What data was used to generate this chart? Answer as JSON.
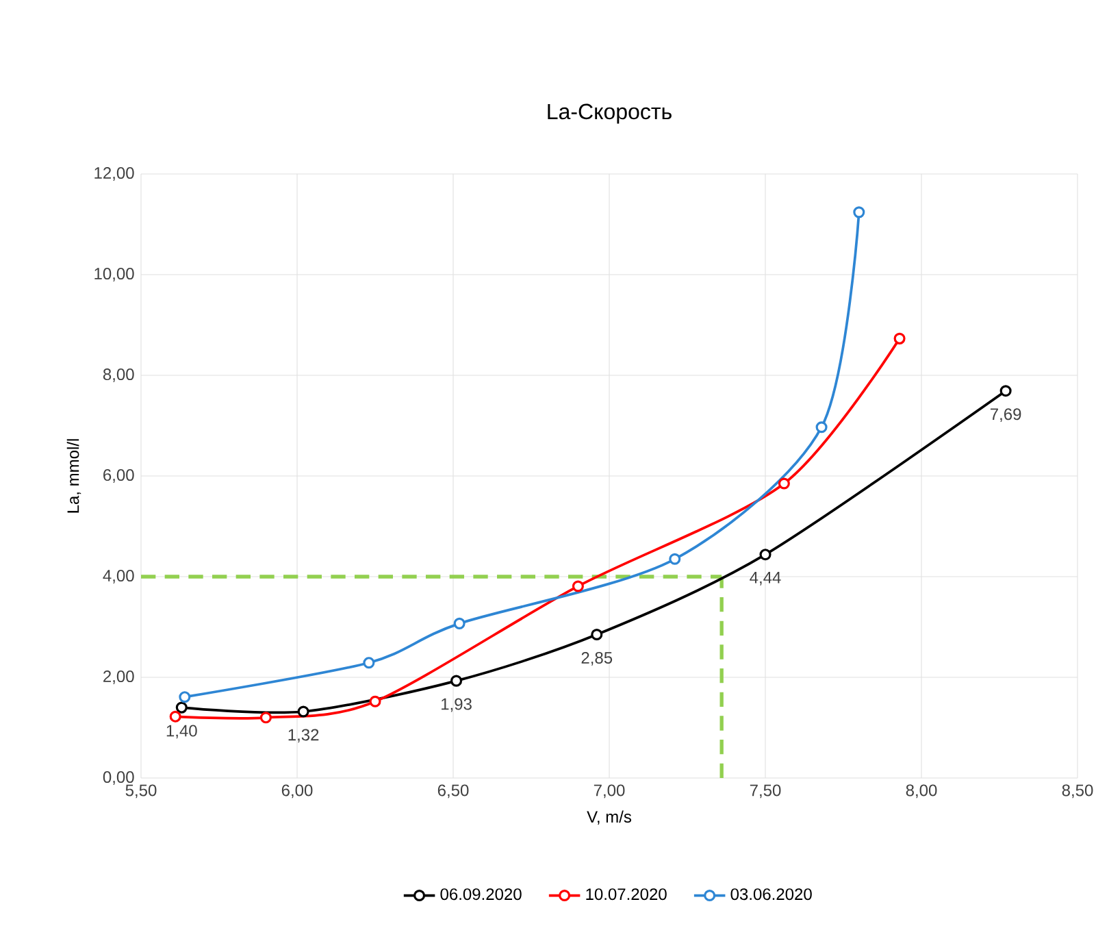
{
  "chart_data": {
    "type": "line",
    "title": "La-Скорость",
    "xlabel": "V, m/s",
    "ylabel": "La, mmol/l",
    "xlim": [
      5.5,
      8.5
    ],
    "xticks": [
      {
        "value": 5.5,
        "label": "5,50"
      },
      {
        "value": 6.0,
        "label": "6,00"
      },
      {
        "value": 6.5,
        "label": "6,50"
      },
      {
        "value": 7.0,
        "label": "7,00"
      },
      {
        "value": 7.5,
        "label": "7,50"
      },
      {
        "value": 8.0,
        "label": "8,00"
      },
      {
        "value": 8.5,
        "label": "8,50"
      }
    ],
    "ylim": [
      0,
      12
    ],
    "yticks": [
      {
        "value": 0,
        "label": "0,00"
      },
      {
        "value": 2,
        "label": "2,00"
      },
      {
        "value": 4,
        "label": "4,00"
      },
      {
        "value": 6,
        "label": "6,00"
      },
      {
        "value": 8,
        "label": "8,00"
      },
      {
        "value": 10,
        "label": "10,00"
      },
      {
        "value": 12,
        "label": "12,00"
      }
    ],
    "grid": true,
    "legend": "bottom",
    "marker": "circle",
    "line_style": "solid",
    "series": [
      {
        "name": "06.09.2020",
        "color": "#000000",
        "x": [
          5.63,
          6.02,
          6.51,
          6.96,
          7.5,
          8.27
        ],
        "values": [
          1.4,
          1.32,
          1.93,
          2.85,
          4.44,
          7.69
        ],
        "value_labels": [
          "1,40",
          "1,32",
          "1,93",
          "2,85",
          "4,44",
          "7,69"
        ]
      },
      {
        "name": "10.07.2020",
        "color": "#ff0000",
        "x": [
          5.61,
          5.9,
          6.25,
          6.9,
          7.56,
          7.93
        ],
        "values": [
          1.22,
          1.2,
          1.52,
          3.81,
          5.85,
          8.73
        ]
      },
      {
        "name": "03.06.2020",
        "color": "#2e86d4",
        "x": [
          5.64,
          6.23,
          6.52,
          7.21,
          7.68,
          7.8
        ],
        "values": [
          1.61,
          2.29,
          3.07,
          4.35,
          6.97,
          11.24
        ]
      }
    ],
    "ref_lines": [
      {
        "axis": "y",
        "value": 4,
        "color": "#92d050",
        "line_style": "dashed"
      },
      {
        "axis": "x",
        "value": 7.36,
        "color": "#92d050",
        "line_style": "dashed"
      }
    ]
  }
}
